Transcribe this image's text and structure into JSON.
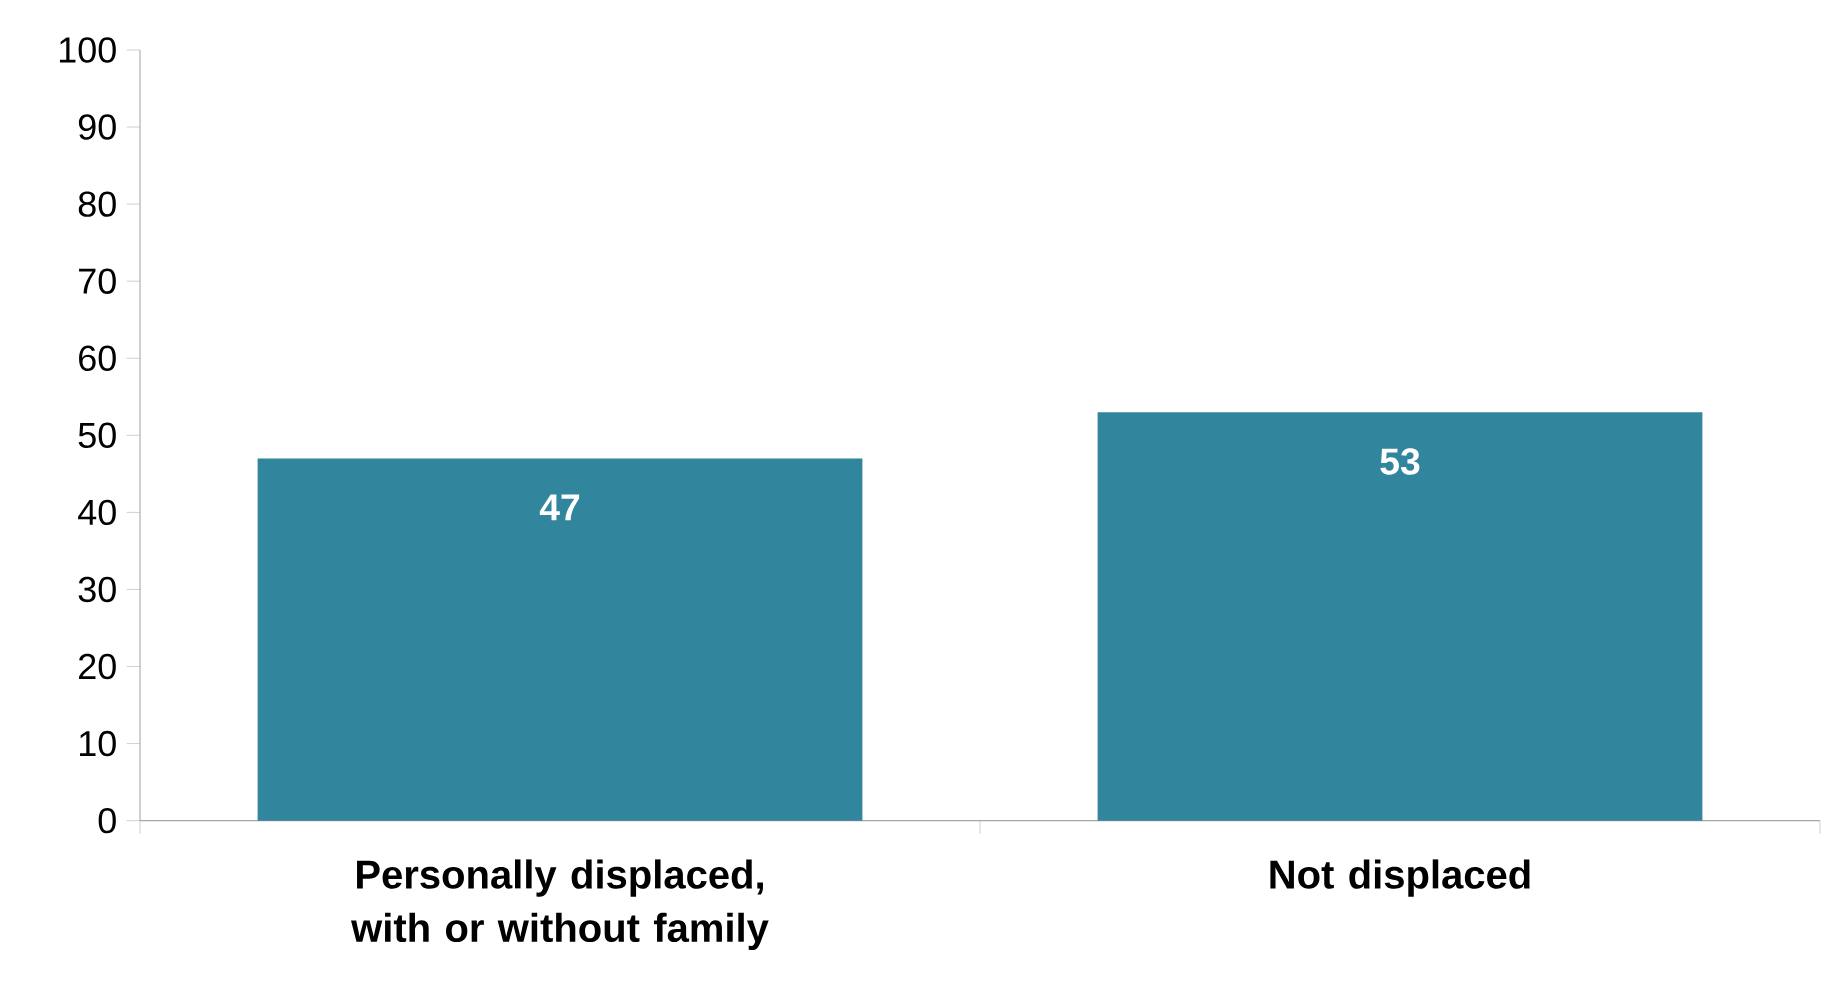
{
  "chart_data": {
    "type": "bar",
    "categories": [
      "Personally displaced, with or without family",
      "Not displaced"
    ],
    "values": [
      47,
      53
    ],
    "color": "#31859c",
    "ylim": [
      0,
      100
    ],
    "yticks": [
      0,
      10,
      20,
      30,
      40,
      50,
      60,
      70,
      80,
      90,
      100
    ],
    "data_labels": true
  }
}
